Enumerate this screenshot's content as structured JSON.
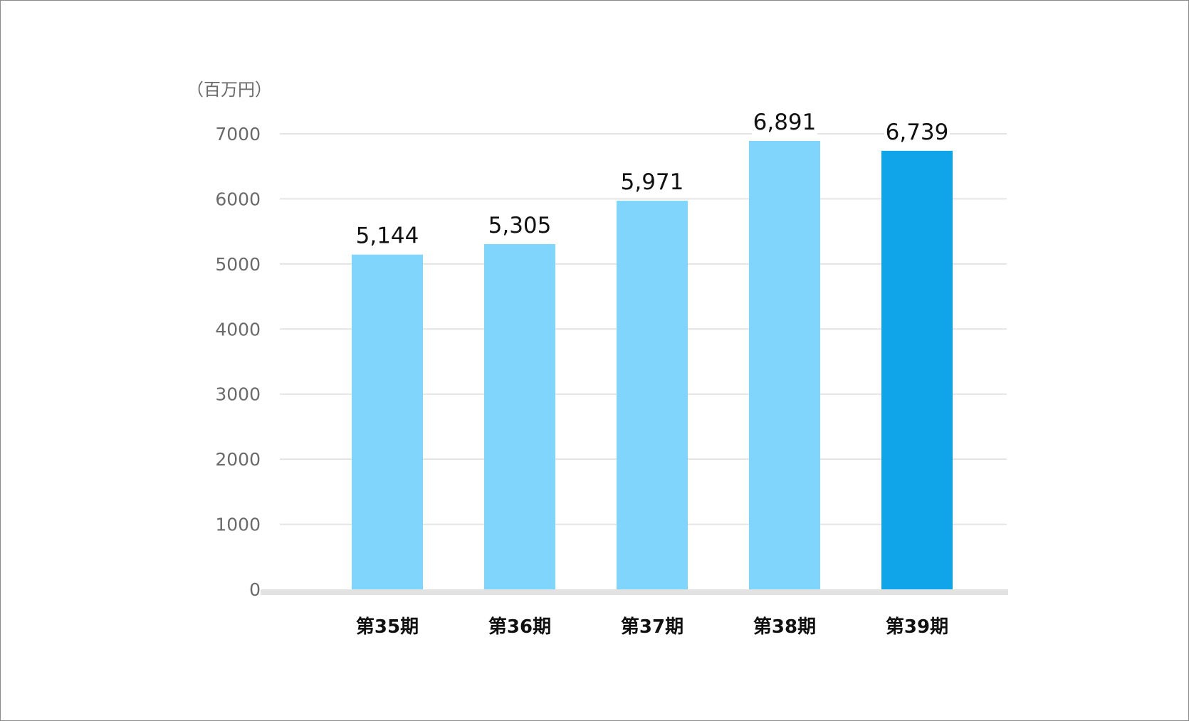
{
  "chart_data": {
    "type": "bar",
    "unit_label": "（百万円）",
    "categories": [
      "第35期",
      "第36期",
      "第37期",
      "第38期",
      "第39期"
    ],
    "values": [
      5144,
      5305,
      5971,
      6891,
      6739
    ],
    "value_labels": [
      "5,144",
      "5,305",
      "5,971",
      "6,891",
      "6,739"
    ],
    "ylim": [
      0,
      7000
    ],
    "yticks": [
      0,
      1000,
      2000,
      3000,
      4000,
      5000,
      6000,
      7000
    ],
    "ytick_labels": [
      "0",
      "1000",
      "2000",
      "3000",
      "4000",
      "5000",
      "6000",
      "7000"
    ],
    "grid": true,
    "colors": {
      "bar": "#80d5fd",
      "highlight_bar": "#10a4e8",
      "grid": "#e4e4e4"
    },
    "highlight_index": 4
  }
}
